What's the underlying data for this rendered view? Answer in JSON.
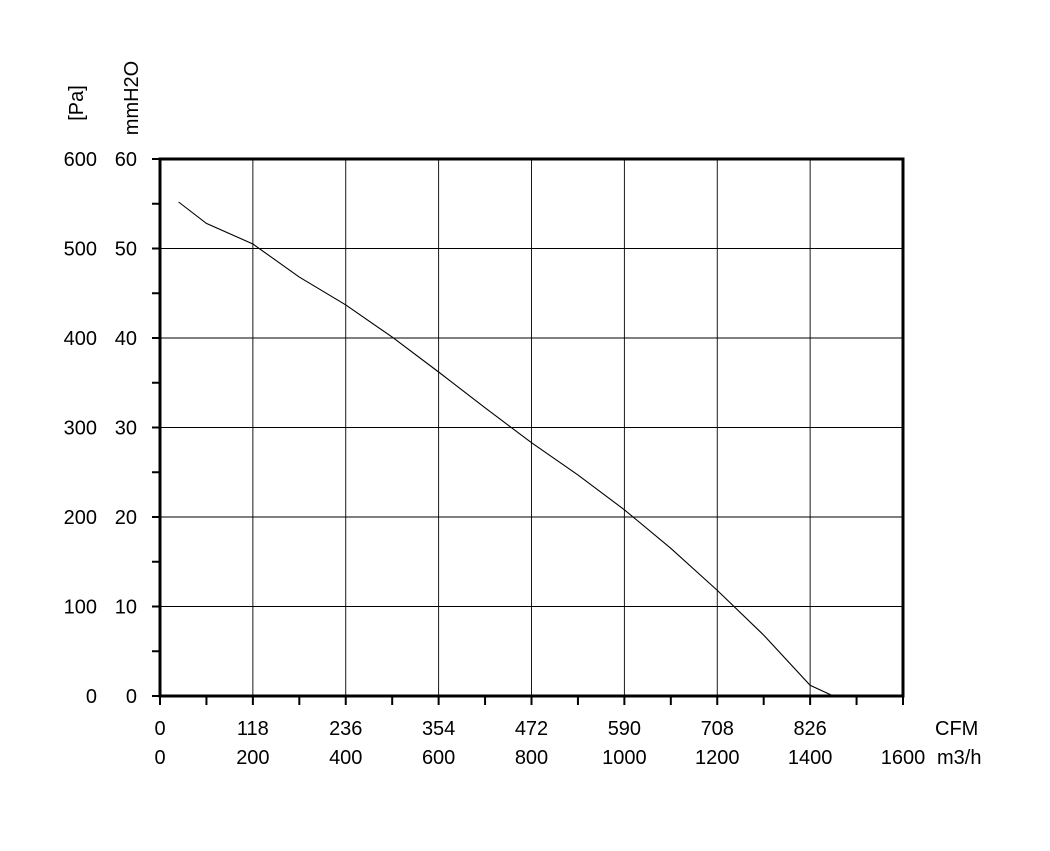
{
  "chart_data": {
    "type": "line",
    "title": "",
    "x_axes": {
      "primary": {
        "unit": "m3/h",
        "range": [
          0,
          1600
        ],
        "ticks": [
          "0",
          "200",
          "400",
          "600",
          "800",
          "1000",
          "1200",
          "1400",
          "1600"
        ]
      },
      "secondary": {
        "unit": "CFM",
        "ticks": [
          "0",
          "118",
          "236",
          "354",
          "472",
          "590",
          "708",
          "826"
        ]
      }
    },
    "y_axes": {
      "left_outer": {
        "unit": "[Pa]",
        "range": [
          0,
          600
        ],
        "ticks": [
          "0",
          "100",
          "200",
          "300",
          "400",
          "500",
          "600"
        ]
      },
      "left_inner": {
        "unit": "mmH2O",
        "range": [
          0,
          60
        ],
        "ticks": [
          "0",
          "10",
          "20",
          "30",
          "40",
          "50",
          "60"
        ]
      }
    },
    "grid": true,
    "series": [
      {
        "x_unit": "m3/h",
        "y_unit": "Pa",
        "points": [
          [
            40,
            552
          ],
          [
            100,
            528
          ],
          [
            200,
            505
          ],
          [
            300,
            468
          ],
          [
            400,
            437
          ],
          [
            500,
            401
          ],
          [
            600,
            362
          ],
          [
            700,
            322
          ],
          [
            800,
            283
          ],
          [
            900,
            247
          ],
          [
            1000,
            208
          ],
          [
            1100,
            165
          ],
          [
            1200,
            118
          ],
          [
            1300,
            68
          ],
          [
            1400,
            12
          ],
          [
            1450,
            0
          ]
        ]
      }
    ]
  }
}
